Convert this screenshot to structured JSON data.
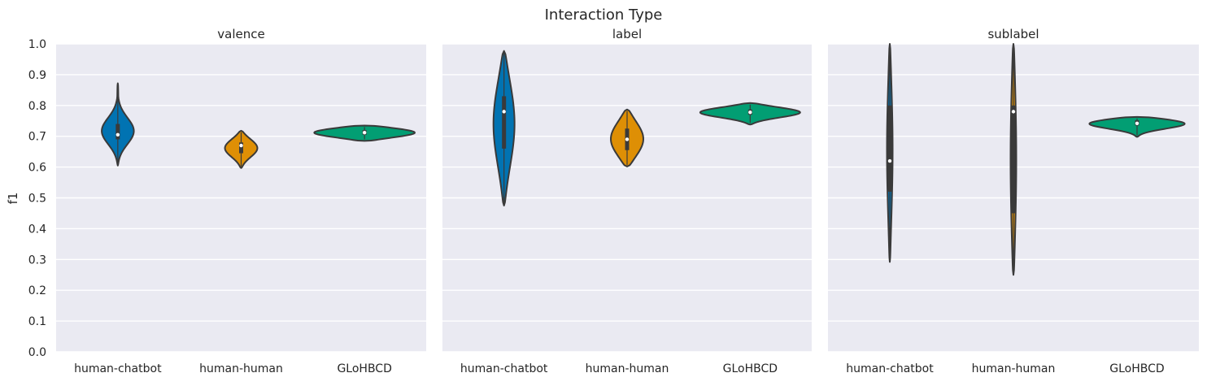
{
  "chart_data": {
    "type": "violin",
    "suptitle": "Interaction Type",
    "ylabel": "f1",
    "ylim": [
      0.0,
      1.0
    ],
    "yticks": [
      "0.0",
      "0.1",
      "0.2",
      "0.3",
      "0.4",
      "0.5",
      "0.6",
      "0.7",
      "0.8",
      "0.9",
      "1.0"
    ],
    "categories": [
      "human-chatbot",
      "human-human",
      "GLoHBCD"
    ],
    "colors": {
      "human-chatbot": "#0173b2",
      "human-human": "#de8f05",
      "GLoHBCD": "#029e73",
      "panel_bg": "#eaeaf2",
      "grid": "#ffffff",
      "outline": "#3a3a3a"
    },
    "grid": true,
    "panels": [
      {
        "title": "valence",
        "violins": [
          {
            "category": "human-chatbot",
            "min": 0.605,
            "max": 0.872,
            "median": 0.705,
            "q1": 0.69,
            "q3": 0.74
          },
          {
            "category": "human-human",
            "min": 0.597,
            "max": 0.718,
            "median": 0.67,
            "q1": 0.645,
            "q3": 0.68
          },
          {
            "category": "GLoHBCD",
            "min": 0.685,
            "max": 0.735,
            "median": 0.712,
            "q1": 0.705,
            "q3": 0.72
          }
        ]
      },
      {
        "title": "label",
        "violins": [
          {
            "category": "human-chatbot",
            "min": 0.475,
            "max": 0.977,
            "median": 0.78,
            "q1": 0.66,
            "q3": 0.83
          },
          {
            "category": "human-human",
            "min": 0.602,
            "max": 0.787,
            "median": 0.69,
            "q1": 0.655,
            "q3": 0.725
          },
          {
            "category": "GLoHBCD",
            "min": 0.738,
            "max": 0.808,
            "median": 0.778,
            "q1": 0.77,
            "q3": 0.787
          }
        ]
      },
      {
        "title": "sublabel",
        "violins": [
          {
            "category": "human-chatbot",
            "min": 0.292,
            "max": 1.0,
            "median": 0.62,
            "q1": 0.52,
            "q3": 0.8
          },
          {
            "category": "human-human",
            "min": 0.25,
            "max": 1.0,
            "median": 0.78,
            "q1": 0.45,
            "q3": 0.8
          },
          {
            "category": "GLoHBCD",
            "min": 0.698,
            "max": 0.763,
            "median": 0.742,
            "q1": 0.735,
            "q3": 0.752
          }
        ]
      }
    ]
  }
}
